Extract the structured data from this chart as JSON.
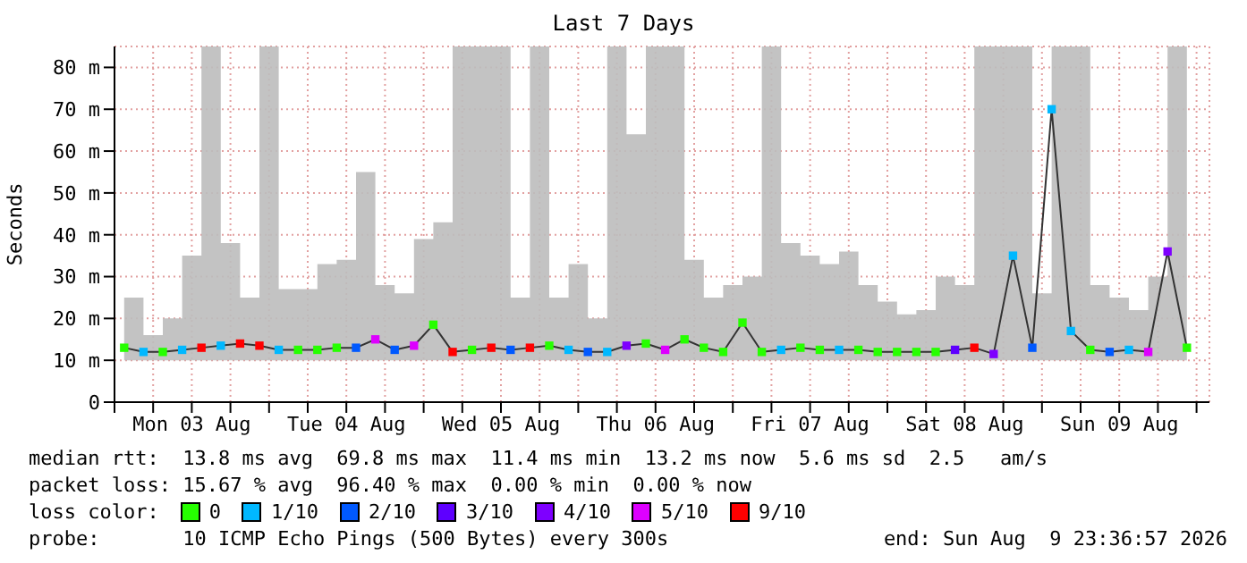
{
  "chart_data": {
    "type": "line",
    "title": "Last 7 Days",
    "ylabel": "Seconds",
    "xlim": [
      "2026-08-03T00:00",
      "2026-08-10T02:00"
    ],
    "xticks": [
      {
        "value": "2026-08-03T00:00",
        "label": null
      },
      {
        "value": "2026-08-03T06:00",
        "label": null
      },
      {
        "value": "2026-08-03T12:00",
        "label": "Mon 03 Aug"
      },
      {
        "value": "2026-08-03T18:00",
        "label": null
      },
      {
        "value": "2026-08-04T00:00",
        "label": null
      },
      {
        "value": "2026-08-04T06:00",
        "label": null
      },
      {
        "value": "2026-08-04T12:00",
        "label": "Tue 04 Aug"
      },
      {
        "value": "2026-08-04T18:00",
        "label": null
      },
      {
        "value": "2026-08-05T00:00",
        "label": null
      },
      {
        "value": "2026-08-05T06:00",
        "label": null
      },
      {
        "value": "2026-08-05T12:00",
        "label": "Wed 05 Aug"
      },
      {
        "value": "2026-08-05T18:00",
        "label": null
      },
      {
        "value": "2026-08-06T00:00",
        "label": null
      },
      {
        "value": "2026-08-06T06:00",
        "label": null
      },
      {
        "value": "2026-08-06T12:00",
        "label": "Thu 06 Aug"
      },
      {
        "value": "2026-08-06T18:00",
        "label": null
      },
      {
        "value": "2026-08-07T00:00",
        "label": null
      },
      {
        "value": "2026-08-07T06:00",
        "label": null
      },
      {
        "value": "2026-08-07T12:00",
        "label": "Fri 07 Aug"
      },
      {
        "value": "2026-08-07T18:00",
        "label": null
      },
      {
        "value": "2026-08-08T00:00",
        "label": null
      },
      {
        "value": "2026-08-08T06:00",
        "label": null
      },
      {
        "value": "2026-08-08T12:00",
        "label": "Sat 08 Aug"
      },
      {
        "value": "2026-08-08T18:00",
        "label": null
      },
      {
        "value": "2026-08-09T00:00",
        "label": null
      },
      {
        "value": "2026-08-09T06:00",
        "label": null
      },
      {
        "value": "2026-08-09T12:00",
        "label": "Sun 09 Aug"
      },
      {
        "value": "2026-08-09T18:00",
        "label": null
      },
      {
        "value": "2026-08-10T00:00",
        "label": null
      }
    ],
    "ylim": [
      0,
      85
    ],
    "yticks": [
      0,
      {
        "value": 10,
        "label": "10 m"
      },
      {
        "value": 20,
        "label": "20 m"
      },
      {
        "value": 30,
        "label": "30 m"
      },
      {
        "value": 40,
        "label": "40 m"
      },
      {
        "value": 50,
        "label": "50 m"
      },
      {
        "value": 60,
        "label": "60 m"
      },
      {
        "value": 70,
        "label": "70 m"
      },
      {
        "value": 80,
        "label": "80 m"
      }
    ],
    "grid": true,
    "legend": "bottom",
    "legend_title": "loss color:",
    "marker": "square",
    "annotations": [
      "median rtt:  13.8 ms avg  69.8 ms max  11.4 ms min  13.2 ms now  5.6 ms sd  2.5   am/s",
      "packet loss: 15.67 % avg  96.40 % max  0.00 % min  0.00 % now",
      "probe:       10 ICMP Echo Pings (500 Bytes) every 300s",
      "end: Sun Aug  9 23:36:57 2026"
    ],
    "series": [
      {
        "color": "#333333",
        "marker": "none",
        "x": [
          "2026-08-03T01:30",
          "2026-08-03T04:30",
          "2026-08-03T07:30",
          "2026-08-03T10:30",
          "2026-08-03T13:30",
          "2026-08-03T16:30",
          "2026-08-03T19:30",
          "2026-08-03T22:30",
          "2026-08-04T01:30",
          "2026-08-04T04:30",
          "2026-08-04T07:30",
          "2026-08-04T10:30",
          "2026-08-04T13:30",
          "2026-08-04T16:30",
          "2026-08-04T19:30",
          "2026-08-04T22:30",
          "2026-08-05T01:30",
          "2026-08-05T04:30",
          "2026-08-05T07:30",
          "2026-08-05T10:30",
          "2026-08-05T13:30",
          "2026-08-05T16:30",
          "2026-08-05T19:30",
          "2026-08-05T22:30",
          "2026-08-06T01:30",
          "2026-08-06T04:30",
          "2026-08-06T07:30",
          "2026-08-06T10:30",
          "2026-08-06T13:30",
          "2026-08-06T16:30",
          "2026-08-06T19:30",
          "2026-08-06T22:30",
          "2026-08-07T01:30",
          "2026-08-07T04:30",
          "2026-08-07T07:30",
          "2026-08-07T10:30",
          "2026-08-07T13:30",
          "2026-08-07T16:30",
          "2026-08-07T19:30",
          "2026-08-07T22:30",
          "2026-08-08T01:30",
          "2026-08-08T04:30",
          "2026-08-08T07:30",
          "2026-08-08T10:30",
          "2026-08-08T13:30",
          "2026-08-08T16:30",
          "2026-08-08T19:30",
          "2026-08-08T22:30",
          "2026-08-09T01:30",
          "2026-08-09T04:30",
          "2026-08-09T07:30",
          "2026-08-09T10:30",
          "2026-08-09T13:30",
          "2026-08-09T16:30",
          "2026-08-09T19:30",
          "2026-08-09T22:30"
        ],
        "values": [
          13,
          12,
          12,
          12.5,
          13,
          13.5,
          14,
          13.5,
          12.5,
          12.5,
          12.5,
          13,
          13,
          15,
          12.5,
          13.5,
          18.5,
          12,
          12.5,
          13,
          12.5,
          13,
          13.5,
          12.5,
          12,
          12,
          13.5,
          14,
          12.5,
          15,
          13,
          12,
          19,
          12,
          12.5,
          13,
          12.5,
          12.5,
          12.5,
          12,
          12,
          12,
          12,
          12.5,
          13,
          11.5,
          35,
          13,
          70,
          17,
          12.5,
          12,
          12.5,
          12,
          36,
          13
        ],
        "upper": [
          25,
          16,
          20,
          35,
          85,
          38,
          25,
          85,
          27,
          27,
          33,
          34,
          55,
          28,
          26,
          39,
          43,
          85,
          85,
          85,
          25,
          85,
          25,
          33,
          20,
          85,
          64,
          85,
          85,
          34,
          25,
          28,
          30,
          85,
          38,
          35,
          33,
          36,
          28,
          24,
          21,
          22,
          30,
          28,
          85,
          85,
          85,
          26,
          85,
          85,
          28,
          25,
          22,
          30,
          85,
          25
        ],
        "lower": [
          10,
          10,
          10,
          10,
          10,
          10,
          10,
          10,
          10,
          10,
          10,
          10,
          10,
          10,
          10,
          10,
          10,
          10,
          10,
          10,
          10,
          10,
          10,
          10,
          10,
          10,
          10,
          10,
          10,
          10,
          10,
          10,
          10,
          10,
          10,
          10,
          10,
          10,
          10,
          10,
          10,
          10,
          10,
          10,
          10,
          10,
          10,
          10,
          10,
          10,
          10,
          10,
          10,
          10,
          10,
          10
        ]
      },
      {
        "type": "scatter",
        "name": "0",
        "color": "#26ff00",
        "x": [
          "2026-08-03T01:30",
          "2026-08-03T07:30",
          "2026-08-04T04:30",
          "2026-08-04T07:30",
          "2026-08-04T10:30",
          "2026-08-05T01:30",
          "2026-08-05T07:30",
          "2026-08-05T19:30",
          "2026-08-06T10:30",
          "2026-08-06T16:30",
          "2026-08-06T19:30",
          "2026-08-06T22:30",
          "2026-08-07T01:30",
          "2026-08-07T04:30",
          "2026-08-07T10:30",
          "2026-08-07T13:30",
          "2026-08-07T19:30",
          "2026-08-07T22:30",
          "2026-08-08T01:30",
          "2026-08-08T04:30",
          "2026-08-08T07:30",
          "2026-08-09T07:30",
          "2026-08-09T22:30"
        ],
        "values": [
          13,
          12,
          12.5,
          12.5,
          13,
          18.5,
          12.5,
          13.5,
          14,
          15,
          13,
          12,
          19,
          12,
          13,
          12.5,
          12.5,
          12,
          12,
          12,
          12,
          12.5,
          13
        ]
      },
      {
        "type": "scatter",
        "name": "1/10",
        "color": "#00b8ff",
        "x": [
          "2026-08-03T04:30",
          "2026-08-03T10:30",
          "2026-08-03T16:30",
          "2026-08-04T01:30",
          "2026-08-05T22:30",
          "2026-08-06T04:30",
          "2026-08-07T07:30",
          "2026-08-07T16:30",
          "2026-08-08T19:30",
          "2026-08-09T01:30",
          "2026-08-09T04:30",
          "2026-08-09T13:30"
        ],
        "values": [
          12,
          12.5,
          13.5,
          12.5,
          12.5,
          12,
          12.5,
          12.5,
          35,
          70,
          17,
          12.5
        ]
      },
      {
        "type": "scatter",
        "name": "2/10",
        "color": "#0059ff",
        "x": [
          "2026-08-04T13:30",
          "2026-08-04T19:30",
          "2026-08-05T13:30",
          "2026-08-06T01:30",
          "2026-08-08T22:30",
          "2026-08-09T10:30"
        ],
        "values": [
          13,
          12.5,
          12.5,
          12,
          13,
          12
        ]
      },
      {
        "type": "scatter",
        "name": "3/10",
        "color": "#5e00ff",
        "x": [
          "2026-08-08T10:30"
        ],
        "values": [
          12.5
        ]
      },
      {
        "type": "scatter",
        "name": "4/10",
        "color": "#7e00ff",
        "x": [
          "2026-08-06T07:30",
          "2026-08-08T16:30",
          "2026-08-09T19:30"
        ],
        "values": [
          13.5,
          11.5,
          36
        ]
      },
      {
        "type": "scatter",
        "name": "5/10",
        "color": "#dd00ff",
        "x": [
          "2026-08-04T16:30",
          "2026-08-04T22:30",
          "2026-08-06T13:30",
          "2026-08-09T16:30"
        ],
        "values": [
          15,
          13.5,
          12.5,
          12
        ]
      },
      {
        "type": "scatter",
        "name": "9/10",
        "color": "#ff0000",
        "x": [
          "2026-08-03T13:30",
          "2026-08-03T19:30",
          "2026-08-03T22:30",
          "2026-08-05T04:30",
          "2026-08-05T10:30",
          "2026-08-05T16:30",
          "2026-08-08T13:30"
        ],
        "values": [
          13,
          14,
          13.5,
          12,
          13,
          13,
          13
        ]
      }
    ]
  }
}
